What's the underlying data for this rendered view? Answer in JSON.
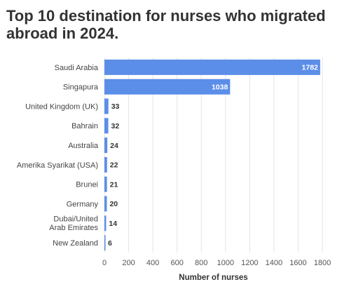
{
  "chart_data": {
    "type": "bar",
    "orientation": "horizontal",
    "title": "Top 10 destination for nurses who migrated abroad in 2024.",
    "categories": [
      "Saudi Arabia",
      "Singapura",
      "United Kingdom (UK)",
      "Bahrain",
      "Australia",
      "Amerika Syarikat (USA)",
      "Brunei",
      "Germany",
      "Dubai/United Arab Emirates",
      "New Zealand"
    ],
    "values": [
      1782,
      1038,
      33,
      32,
      24,
      22,
      21,
      20,
      14,
      6
    ],
    "xlabel": "Number of nurses",
    "ylabel": "",
    "xlim": [
      0,
      1800
    ],
    "x_ticks": [
      0,
      200,
      400,
      600,
      800,
      1000,
      1200,
      1400,
      1600,
      1800
    ],
    "grid": true,
    "bar_color": "#5b8ee8",
    "grid_color": "#e4e4e4"
  }
}
